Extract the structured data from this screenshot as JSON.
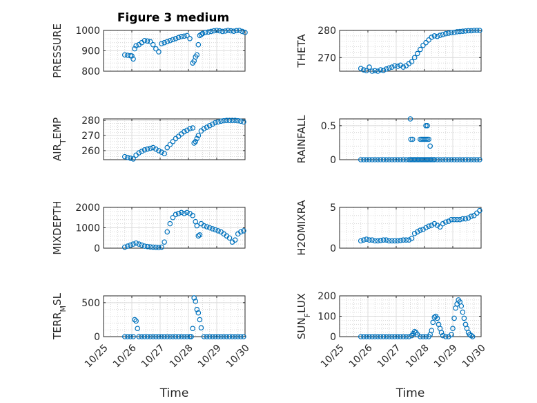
{
  "figure": {
    "title": "Figure 3 medium",
    "marker_color": "#0072BD",
    "axis_color": "#262626",
    "grid": "major+minor"
  },
  "chart_data": [
    {
      "type": "scatter",
      "title": "Figure 3 medium",
      "ylabel": "PRESSURE",
      "ylim": [
        800,
        1000
      ],
      "yticks": [
        800,
        900,
        1000
      ],
      "xlabel": "",
      "xlim": [
        "10/25",
        "10/30"
      ],
      "xticks": [
        "10/25",
        "10/26",
        "10/27",
        "10/28",
        "10/29",
        "10/30"
      ],
      "show_xtick_labels": false,
      "x": [
        25.75,
        25.85,
        25.95,
        26.0,
        26.05,
        26.1,
        26.15,
        26.25,
        26.35,
        26.45,
        26.55,
        26.65,
        26.75,
        26.85,
        26.95,
        27.05,
        27.15,
        27.25,
        27.35,
        27.45,
        27.55,
        27.65,
        27.75,
        27.85,
        27.95,
        28.05,
        28.15,
        28.2,
        28.25,
        28.3,
        28.35,
        28.4,
        28.45,
        28.5,
        28.6,
        28.7,
        28.8,
        28.9,
        29.0,
        29.1,
        29.2,
        29.3,
        29.4,
        29.5,
        29.6,
        29.7,
        29.8,
        29.9,
        30.0
      ],
      "y": [
        880,
        878,
        876,
        875,
        860,
        910,
        925,
        930,
        940,
        950,
        948,
        945,
        930,
        910,
        895,
        935,
        940,
        945,
        950,
        955,
        960,
        965,
        970,
        972,
        975,
        960,
        840,
        850,
        870,
        880,
        930,
        975,
        980,
        985,
        990,
        992,
        995,
        998,
        1000,
        998,
        995,
        997,
        1000,
        998,
        996,
        999,
        1000,
        995,
        990
      ]
    },
    {
      "type": "scatter",
      "ylabel": "THETA",
      "ylim": [
        265,
        280
      ],
      "yticks": [
        270,
        280
      ],
      "xlim": [
        "10/25",
        "10/30"
      ],
      "xticks": [
        "10/25",
        "10/26",
        "10/27",
        "10/28",
        "10/29",
        "10/30"
      ],
      "show_xtick_labels": false,
      "x": [
        25.75,
        25.85,
        25.95,
        26.05,
        26.15,
        26.25,
        26.35,
        26.45,
        26.55,
        26.65,
        26.75,
        26.85,
        26.95,
        27.05,
        27.15,
        27.25,
        27.35,
        27.45,
        27.55,
        27.65,
        27.75,
        27.85,
        27.95,
        28.05,
        28.15,
        28.25,
        28.35,
        28.45,
        28.55,
        28.65,
        28.75,
        28.85,
        28.95,
        29.05,
        29.15,
        29.25,
        29.35,
        29.45,
        29.55,
        29.65,
        29.75,
        29.85,
        29.95
      ],
      "y": [
        266,
        265.5,
        265.2,
        266.5,
        265,
        265.2,
        265,
        265.5,
        265.3,
        265.8,
        266.2,
        266.5,
        267,
        266.8,
        267.2,
        266.5,
        267,
        267.8,
        268.5,
        270,
        271.5,
        273,
        274.5,
        275.5,
        276.5,
        277.5,
        278,
        277.8,
        278.2,
        278.5,
        278.8,
        279,
        279.2,
        279.3,
        279.5,
        279.6,
        279.7,
        279.8,
        279.9,
        279.9,
        280,
        280,
        280
      ]
    },
    {
      "type": "scatter",
      "ylabel": "AIR_TEMP",
      "ylim": [
        254,
        281
      ],
      "yticks": [
        260,
        270,
        280
      ],
      "xlim": [
        "10/25",
        "10/30"
      ],
      "xticks": [
        "10/25",
        "10/26",
        "10/27",
        "10/28",
        "10/29",
        "10/30"
      ],
      "show_xtick_labels": false,
      "x": [
        25.75,
        25.85,
        25.95,
        26.05,
        26.15,
        26.25,
        26.35,
        26.45,
        26.55,
        26.65,
        26.75,
        26.85,
        26.95,
        27.05,
        27.15,
        27.25,
        27.35,
        27.45,
        27.55,
        27.65,
        27.75,
        27.85,
        27.95,
        28.05,
        28.15,
        28.2,
        28.25,
        28.3,
        28.35,
        28.45,
        28.55,
        28.65,
        28.75,
        28.85,
        28.95,
        29.05,
        29.15,
        29.25,
        29.35,
        29.45,
        29.55,
        29.65,
        29.75,
        29.85,
        29.95
      ],
      "y": [
        256,
        255.5,
        255,
        254.5,
        257,
        258.5,
        259.5,
        260.5,
        261,
        261.5,
        262,
        261,
        260,
        259,
        258,
        262,
        264,
        266,
        268,
        269.5,
        271,
        272.5,
        273.5,
        274.5,
        275,
        265,
        266,
        268,
        270,
        273,
        274.5,
        275.5,
        276.5,
        277.5,
        278.5,
        279,
        279.5,
        279.8,
        280,
        280,
        280,
        280,
        279.8,
        279.5,
        279
      ]
    },
    {
      "type": "scatter",
      "ylabel": "RAINFALL",
      "ylim": [
        0,
        0.6
      ],
      "yticks": [
        0,
        0.5
      ],
      "xlim": [
        "10/25",
        "10/30"
      ],
      "xticks": [
        "10/25",
        "10/26",
        "10/27",
        "10/28",
        "10/29",
        "10/30"
      ],
      "show_xtick_labels": false,
      "x": [
        25.75,
        25.85,
        25.95,
        26.05,
        26.15,
        26.25,
        26.35,
        26.45,
        26.55,
        26.65,
        26.75,
        26.85,
        26.95,
        27.05,
        27.15,
        27.25,
        27.35,
        27.45,
        27.5,
        27.55,
        27.6,
        27.65,
        27.7,
        27.75,
        27.8,
        27.85,
        27.9,
        27.95,
        28.0,
        28.05,
        28.1,
        28.15,
        28.2,
        28.25,
        28.3,
        28.35,
        28.45,
        28.55,
        28.65,
        28.75,
        28.85,
        28.95,
        29.05,
        29.15,
        29.25,
        29.35,
        29.45,
        29.55,
        29.65,
        29.75,
        29.85,
        29.95,
        27.52,
        27.58,
        27.5,
        27.85,
        27.9,
        27.95,
        28.0,
        28.05,
        28.1,
        28.15,
        28.05,
        28.1,
        28.2
      ],
      "y": [
        0,
        0,
        0,
        0,
        0,
        0,
        0,
        0,
        0,
        0,
        0,
        0,
        0,
        0,
        0,
        0,
        0,
        0,
        0,
        0,
        0,
        0,
        0,
        0,
        0,
        0,
        0,
        0,
        0,
        0,
        0,
        0,
        0,
        0,
        0,
        0,
        0,
        0,
        0,
        0,
        0,
        0,
        0,
        0,
        0,
        0,
        0,
        0,
        0,
        0,
        0,
        0,
        0.3,
        0.3,
        0.6,
        0.3,
        0.3,
        0.3,
        0.3,
        0.3,
        0.3,
        0.3,
        0.5,
        0.5,
        0.2
      ]
    },
    {
      "type": "scatter",
      "ylabel": "MIXDEPTH",
      "ylim": [
        0,
        2000
      ],
      "yticks": [
        0,
        1000,
        2000
      ],
      "xlim": [
        "10/25",
        "10/30"
      ],
      "xticks": [
        "10/25",
        "10/26",
        "10/27",
        "10/28",
        "10/29",
        "10/30"
      ],
      "show_xtick_labels": false,
      "x": [
        25.75,
        25.85,
        25.95,
        26.05,
        26.15,
        26.25,
        26.35,
        26.45,
        26.55,
        26.65,
        26.75,
        26.85,
        26.95,
        27.05,
        27.15,
        27.25,
        27.35,
        27.45,
        27.55,
        27.65,
        27.75,
        27.85,
        27.95,
        28.05,
        28.15,
        28.25,
        28.3,
        28.35,
        28.4,
        28.45,
        28.55,
        28.65,
        28.75,
        28.85,
        28.95,
        29.05,
        29.15,
        29.25,
        29.35,
        29.45,
        29.55,
        29.65,
        29.75,
        29.85,
        29.95
      ],
      "y": [
        50,
        100,
        150,
        200,
        250,
        200,
        150,
        100,
        80,
        60,
        50,
        40,
        30,
        50,
        300,
        800,
        1200,
        1500,
        1650,
        1700,
        1750,
        1700,
        1750,
        1700,
        1600,
        1300,
        1100,
        600,
        650,
        1200,
        1100,
        1050,
        1000,
        950,
        900,
        850,
        800,
        700,
        600,
        500,
        300,
        400,
        700,
        800,
        850
      ]
    },
    {
      "type": "scatter",
      "ylabel": "H2OMIXRA",
      "ylim": [
        0,
        5
      ],
      "yticks": [
        0,
        5
      ],
      "xlim": [
        "10/25",
        "10/30"
      ],
      "xticks": [
        "10/25",
        "10/26",
        "10/27",
        "10/28",
        "10/29",
        "10/30"
      ],
      "show_xtick_labels": false,
      "x": [
        25.75,
        25.85,
        25.95,
        26.05,
        26.15,
        26.25,
        26.35,
        26.45,
        26.55,
        26.65,
        26.75,
        26.85,
        26.95,
        27.05,
        27.15,
        27.25,
        27.35,
        27.45,
        27.55,
        27.65,
        27.75,
        27.85,
        27.95,
        28.05,
        28.15,
        28.25,
        28.35,
        28.45,
        28.55,
        28.65,
        28.75,
        28.85,
        28.95,
        29.05,
        29.15,
        29.25,
        29.35,
        29.45,
        29.55,
        29.65,
        29.75,
        29.85,
        29.95
      ],
      "y": [
        0.9,
        1.0,
        1.1,
        1.0,
        1.0,
        0.9,
        0.9,
        0.95,
        1.0,
        1.0,
        0.9,
        0.9,
        0.9,
        0.9,
        0.95,
        1.0,
        1.0,
        1.0,
        1.2,
        1.8,
        2.0,
        2.2,
        2.3,
        2.5,
        2.7,
        2.8,
        3.0,
        2.8,
        2.6,
        3.0,
        3.2,
        3.3,
        3.5,
        3.5,
        3.5,
        3.5,
        3.6,
        3.6,
        3.7,
        3.9,
        4.0,
        4.3,
        4.6
      ]
    },
    {
      "type": "scatter",
      "ylabel": "TERR_MSL",
      "ylim": [
        0,
        600
      ],
      "yticks": [
        0,
        500
      ],
      "xlabel": "Time",
      "xlim": [
        "10/25",
        "10/30"
      ],
      "xticks": [
        "10/25",
        "10/26",
        "10/27",
        "10/28",
        "10/29",
        "10/30"
      ],
      "show_xtick_labels": true,
      "x": [
        25.75,
        25.85,
        25.95,
        26.05,
        26.1,
        26.15,
        26.2,
        26.25,
        26.35,
        26.45,
        26.55,
        26.65,
        26.75,
        26.85,
        26.95,
        27.05,
        27.15,
        27.25,
        27.35,
        27.45,
        27.55,
        27.65,
        27.75,
        27.85,
        27.95,
        28.05,
        28.1,
        28.15,
        28.2,
        28.25,
        28.3,
        28.35,
        28.4,
        28.45,
        28.55,
        28.65,
        28.75,
        28.85,
        28.95,
        29.05,
        29.15,
        29.25,
        29.35,
        29.45,
        29.55,
        29.65,
        29.75,
        29.85,
        29.95
      ],
      "y": [
        0,
        0,
        0,
        0,
        250,
        230,
        120,
        0,
        0,
        0,
        0,
        0,
        0,
        0,
        0,
        0,
        0,
        0,
        0,
        0,
        0,
        0,
        0,
        0,
        0,
        0,
        0,
        120,
        570,
        520,
        400,
        350,
        250,
        130,
        0,
        0,
        0,
        0,
        0,
        0,
        0,
        0,
        0,
        0,
        0,
        0,
        0,
        0,
        0
      ]
    },
    {
      "type": "scatter",
      "ylabel": "SUN_FLUX",
      "ylim": [
        0,
        200
      ],
      "yticks": [
        0,
        100,
        200
      ],
      "xlabel": "Time",
      "xlim": [
        "10/25",
        "10/30"
      ],
      "xticks": [
        "10/25",
        "10/26",
        "10/27",
        "10/28",
        "10/29",
        "10/30"
      ],
      "show_xtick_labels": true,
      "x": [
        25.75,
        25.85,
        25.95,
        26.05,
        26.15,
        26.25,
        26.35,
        26.45,
        26.55,
        26.65,
        26.75,
        26.85,
        26.95,
        27.05,
        27.15,
        27.25,
        27.35,
        27.45,
        27.55,
        27.6,
        27.65,
        27.7,
        27.75,
        27.85,
        27.95,
        28.05,
        28.15,
        28.2,
        28.25,
        28.3,
        28.35,
        28.4,
        28.45,
        28.5,
        28.55,
        28.6,
        28.65,
        28.75,
        28.85,
        28.95,
        29.0,
        29.05,
        29.1,
        29.15,
        29.2,
        29.25,
        29.3,
        29.35,
        29.4,
        29.45,
        29.5,
        29.55,
        29.6,
        29.65,
        29.7
      ],
      "y": [
        0,
        0,
        0,
        0,
        0,
        0,
        0,
        0,
        0,
        0,
        0,
        0,
        0,
        0,
        0,
        0,
        0,
        0,
        5,
        15,
        25,
        20,
        10,
        0,
        0,
        0,
        0,
        10,
        30,
        70,
        95,
        100,
        90,
        60,
        40,
        20,
        5,
        0,
        0,
        10,
        40,
        90,
        140,
        160,
        180,
        170,
        150,
        120,
        90,
        60,
        40,
        20,
        10,
        5,
        0
      ]
    }
  ]
}
